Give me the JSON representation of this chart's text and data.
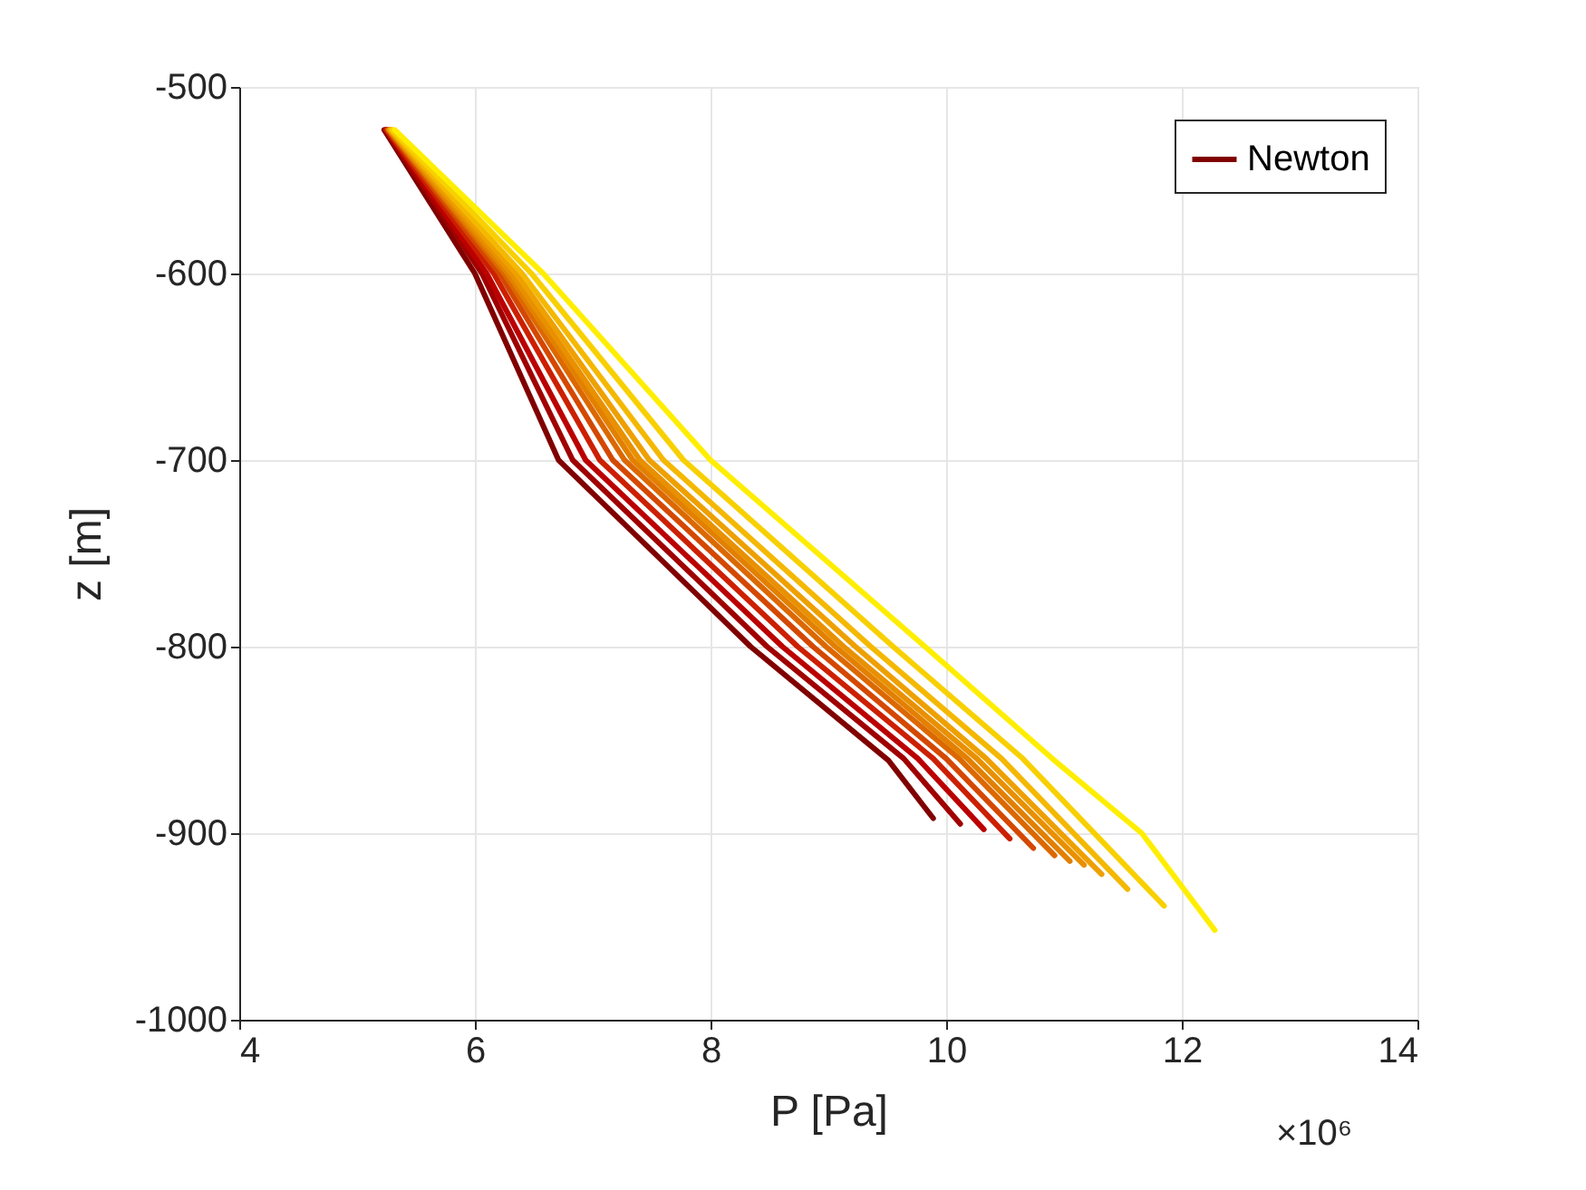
{
  "chart_data": {
    "type": "line",
    "xlabel": "P [Pa]",
    "ylabel": "z [m]",
    "xlim": [
      4,
      14
    ],
    "xticks": [
      4,
      6,
      8,
      10,
      12,
      14
    ],
    "ylim": [
      -1000,
      -500
    ],
    "yticks": [
      -1000,
      -900,
      -800,
      -700,
      -600,
      -500
    ],
    "grid": true,
    "legend": "top right",
    "marker": "none",
    "line_style": "solid",
    "annotations": [
      "×10⁶"
    ],
    "series": [
      {
        "name": "Newton",
        "color": "#800000",
        "x": [
          5.23,
          6.0,
          6.71,
          8.34,
          9.51,
          9.89
        ],
        "values": [
          -523,
          -600,
          -700,
          -800,
          -861,
          -892
        ]
      },
      {
        "color": "#a00000",
        "x": [
          5.24,
          6.06,
          6.83,
          8.48,
          9.64,
          10.12
        ],
        "values": [
          -523,
          -600,
          -700,
          -800,
          -860,
          -895
        ]
      },
      {
        "color": "#bb0000",
        "x": [
          5.25,
          6.1,
          6.94,
          8.61,
          9.76,
          10.32
        ],
        "values": [
          -523,
          -600,
          -700,
          -800,
          -860,
          -898
        ]
      },
      {
        "color": "#cc2000",
        "x": [
          5.25,
          6.16,
          7.06,
          8.74,
          9.89,
          10.54
        ],
        "values": [
          -523,
          -600,
          -700,
          -800,
          -860,
          -903
        ]
      },
      {
        "color": "#d44800",
        "x": [
          5.26,
          6.21,
          7.17,
          8.87,
          10.0,
          10.74
        ],
        "values": [
          -523,
          -600,
          -700,
          -800,
          -860,
          -908
        ]
      },
      {
        "color": "#dc6800",
        "x": [
          5.27,
          6.25,
          7.27,
          8.98,
          10.11,
          10.92
        ],
        "values": [
          -523,
          -600,
          -700,
          -800,
          -860,
          -912
        ]
      },
      {
        "color": "#e28000",
        "x": [
          5.27,
          6.28,
          7.34,
          9.06,
          10.18,
          11.05
        ],
        "values": [
          -523,
          -600,
          -700,
          -800,
          -860,
          -915
        ]
      },
      {
        "color": "#e89000",
        "x": [
          5.28,
          6.31,
          7.4,
          9.13,
          10.26,
          11.17
        ],
        "values": [
          -523,
          -600,
          -700,
          -800,
          -860,
          -917
        ]
      },
      {
        "color": "#eea000",
        "x": [
          5.28,
          6.35,
          7.48,
          9.23,
          10.34,
          11.32
        ],
        "values": [
          -523,
          -600,
          -700,
          -800,
          -860,
          -922
        ]
      },
      {
        "color": "#f4b800",
        "x": [
          5.29,
          6.4,
          7.6,
          9.36,
          10.47,
          11.54
        ],
        "values": [
          -523,
          -600,
          -700,
          -800,
          -860,
          -930
        ]
      },
      {
        "color": "#f8d000",
        "x": [
          5.3,
          6.48,
          7.77,
          9.55,
          10.65,
          11.85
        ],
        "values": [
          -523,
          -600,
          -700,
          -800,
          -860,
          -939
        ]
      },
      {
        "color": "#ffee00",
        "x": [
          5.32,
          6.58,
          8.0,
          9.82,
          10.9,
          11.66,
          12.28
        ],
        "values": [
          -523,
          -600,
          -700,
          -800,
          -860,
          -900,
          -952
        ]
      }
    ]
  }
}
